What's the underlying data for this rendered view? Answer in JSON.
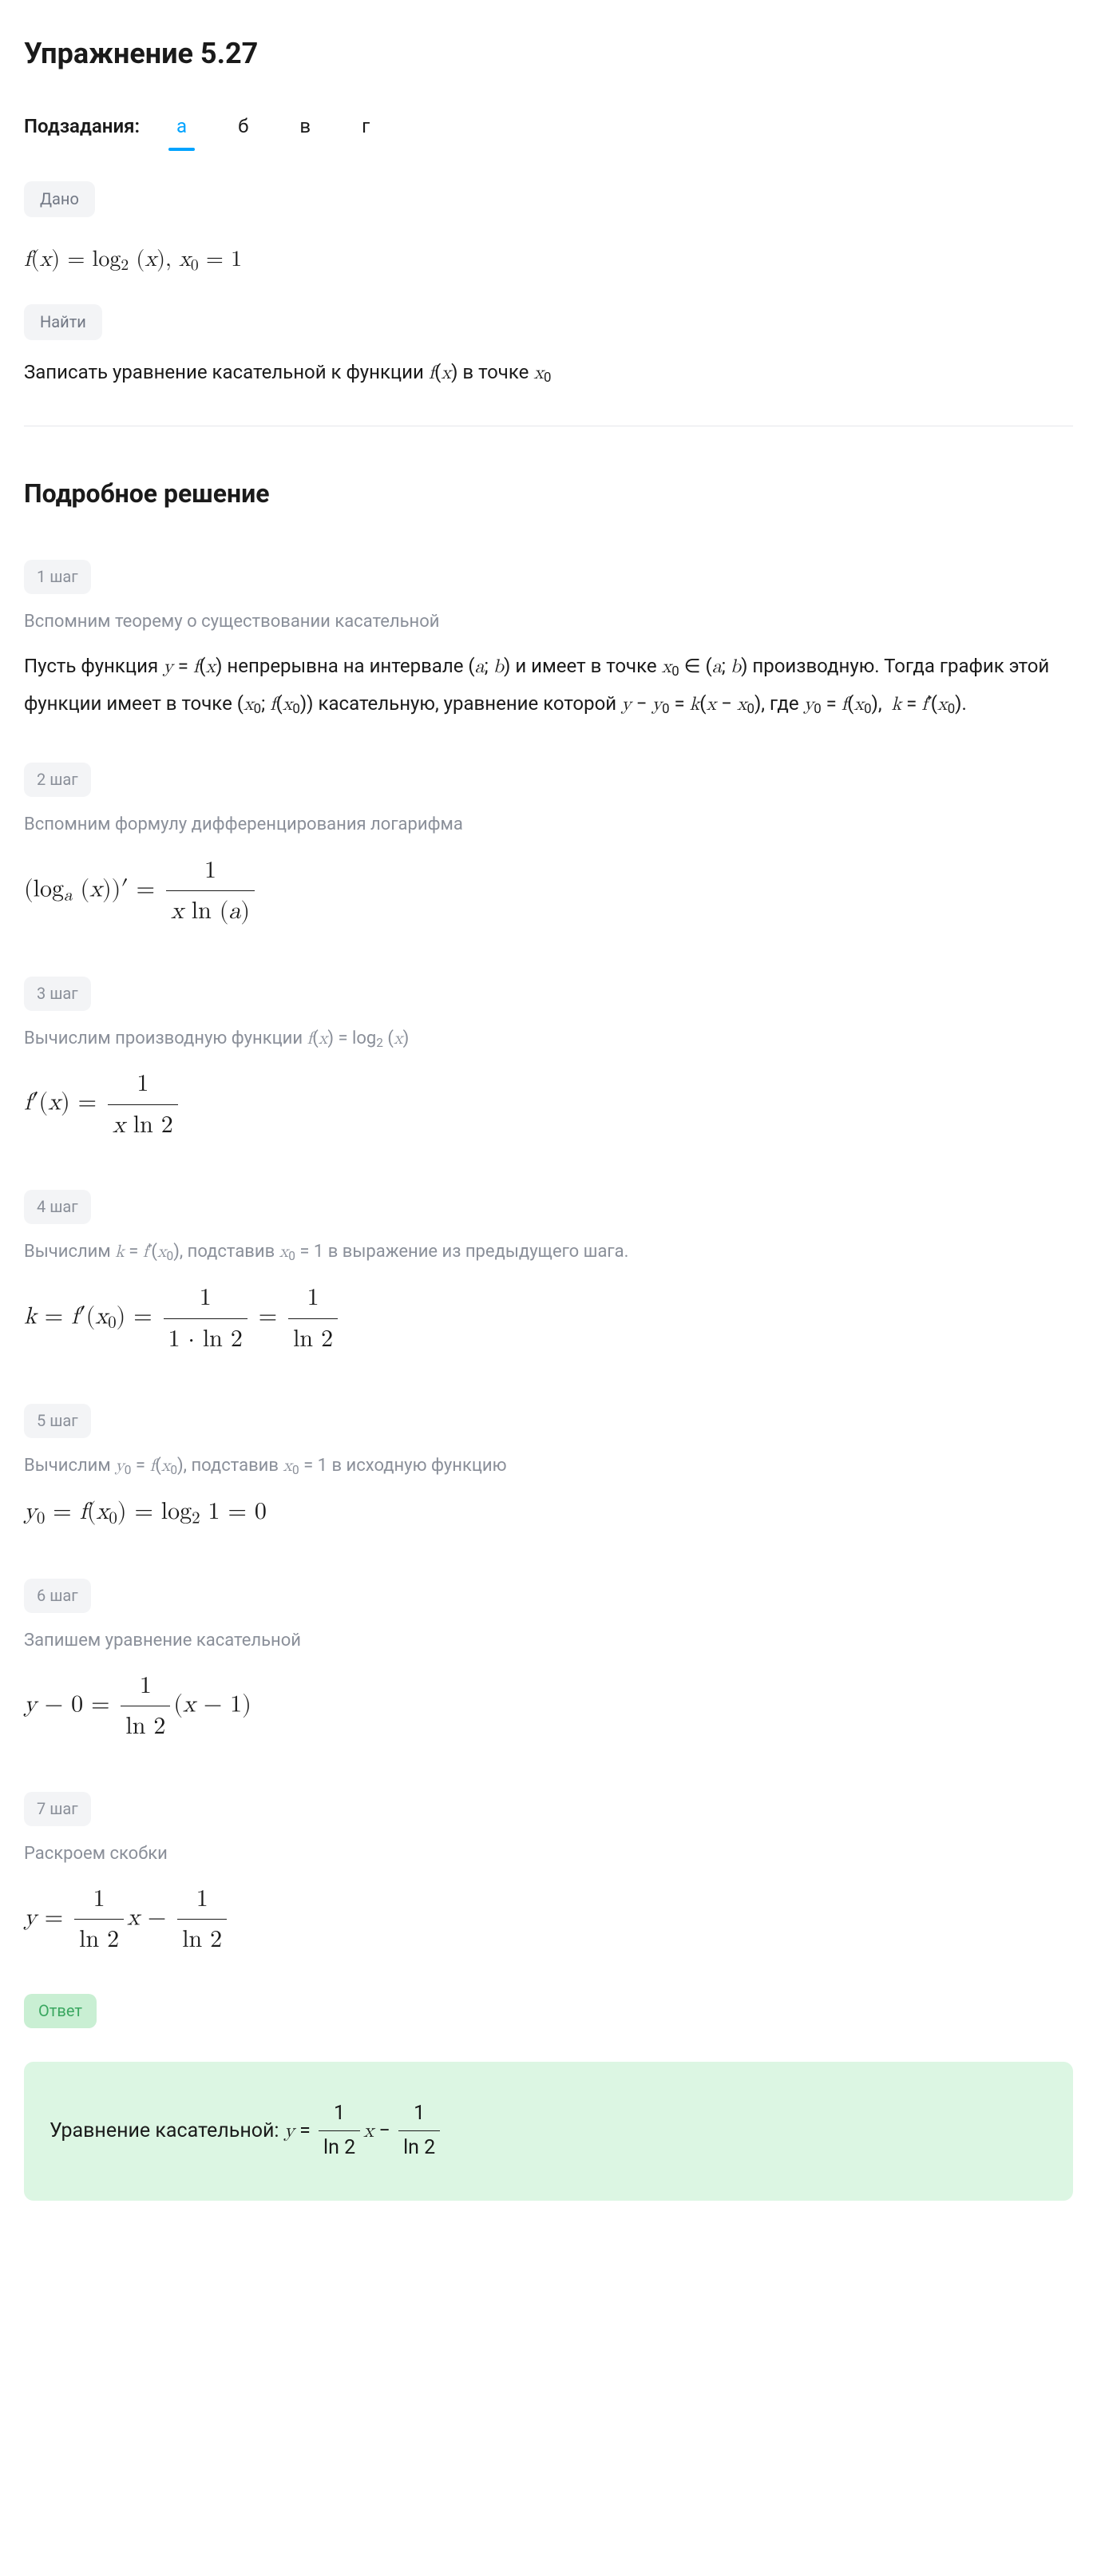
{
  "title": "Упражнение 5.27",
  "subtasks": {
    "label": "Подзадания:",
    "tabs": [
      "а",
      "б",
      "в",
      "г"
    ],
    "active_index": 0,
    "active_color": "#00a3ff"
  },
  "given": {
    "pill": "Дано",
    "formula_html": "<span class='mi'>f</span>(<span class='mi'>x</span>) = log<sub>2</sub> (<span class='mi'>x</span>), <span class='mi'>x</span><sub>0</sub> = 1"
  },
  "find": {
    "pill": "Найти",
    "text_html": "Записать уравнение касательной к функции <span class='mi'>f</span>(<span class='mi'>x</span>) в точке <span class='mi'>x</span><sub>0</sub>"
  },
  "solution_title": "Подробное решение",
  "steps": [
    {
      "badge": "1 шаг",
      "caption": "Вспомним теорему о существовании касательной",
      "body_html": "Пусть функция <span class='mi'>y</span> = <span class='mi'>f</span>(<span class='mi'>x</span>) непрерывна на интервале (<span class='mi'>a</span>; <span class='mi'>b</span>) и имеет в точке <span class='mi'>x</span><sub>0</sub> ∈ (<span class='mi'>a</span>; <span class='mi'>b</span>) производную. Тогда график этой функции имеет в точке (<span class='mi'>x</span><sub>0</sub>; <span class='mi'>f</span>(<span class='mi'>x</span><sub>0</sub>)) касательную, уравнение которой <span class='mi'>y</span> − <span class='mi'>y</span><sub>0</sub> = <span class='mi'>k</span>(<span class='mi'>x</span> − <span class='mi'>x</span><sub>0</sub>), где <span class='mi'>y</span><sub>0</sub> = <span class='mi'>f</span>(<span class='mi'>x</span><sub>0</sub>), &nbsp;<span class='mi'>k</span> = <span class='mi'>f</span>′(<span class='mi'>x</span><sub>0</sub>).",
      "formula_html": ""
    },
    {
      "badge": "2 шаг",
      "caption": "Вспомним формулу дифференцирования логарифма",
      "body_html": "",
      "formula_html": "(log<sub><span class='mi'>a</span></sub> (<span class='mi'>x</span>))′ = <span class='frac'><span class='num'>1</span><span class='den'><span class='mi'>x</span> ln (<span class='mi'>a</span>)</span></span>"
    },
    {
      "badge": "3 шаг",
      "caption_html": "Вычислим производную функции <span class='mi'>f</span>(<span class='mi'>x</span>) = log<sub>2</sub> (<span class='mi'>x</span>)",
      "body_html": "",
      "formula_html": "<span class='mi'>f</span>′(<span class='mi'>x</span>) = <span class='frac'><span class='num'>1</span><span class='den'><span class='mi'>x</span> ln 2</span></span>"
    },
    {
      "badge": "4 шаг",
      "caption_html": "Вычислим <span class='mi'>k</span> = <span class='mi'>f</span>′(<span class='mi'>x</span><sub>0</sub>), подставив <span class='mi'>x</span><sub>0</sub> = 1 в выражение из предыдущего шага.",
      "body_html": "",
      "formula_html": "<span class='mi'>k</span> = <span class='mi'>f</span>′(<span class='mi'>x</span><sub>0</sub>) = <span class='frac'><span class='num'>1</span><span class='den'>1 · ln 2</span></span> = <span class='frac'><span class='num'>1</span><span class='den'>ln 2</span></span>"
    },
    {
      "badge": "5 шаг",
      "caption_html": "Вычислим <span class='mi'>y</span><sub>0</sub> = <span class='mi'>f</span>(<span class='mi'>x</span><sub>0</sub>), подставив <span class='mi'>x</span><sub>0</sub> = 1 в исходную функцию",
      "body_html": "",
      "formula_html": "<span class='mi'>y</span><sub>0</sub> = <span class='mi'>f</span>(<span class='mi'>x</span><sub>0</sub>) = log<sub>2</sub> 1 = 0"
    },
    {
      "badge": "6 шаг",
      "caption": "Запишем уравнение касательной",
      "body_html": "",
      "formula_html": "<span class='mi'>y</span> − 0 = <span class='frac'><span class='num'>1</span><span class='den'>ln 2</span></span>(<span class='mi'>x</span> − 1)"
    },
    {
      "badge": "7 шаг",
      "caption": "Раскроем скобки",
      "body_html": "",
      "formula_html": "<span class='mi'>y</span> = <span class='frac'><span class='num'>1</span><span class='den'>ln 2</span></span><span class='mi'>x</span> − <span class='frac'><span class='num'>1</span><span class='den'>ln 2</span></span>"
    }
  ],
  "answer": {
    "pill": "Ответ",
    "text_html": "Уравнение касательной: <span class='mi'>y</span> = <span class='frac'><span class='num'>1</span><span class='den'>ln 2</span></span><span class='mi'>x</span> − <span class='frac'><span class='num'>1</span><span class='den'>ln 2</span></span>",
    "bg": "#dcf6e3",
    "pill_bg": "#c9efd3",
    "pill_color": "#3aa760"
  },
  "colors": {
    "text": "#1a1a1a",
    "muted": "#8a8f99",
    "pill_bg": "#f3f4f6",
    "divider": "#e5e7eb",
    "bg": "#ffffff"
  },
  "typography": {
    "title_fontsize": 36,
    "body_fontsize": 24,
    "math_fontsize": 28,
    "badge_fontsize": 20
  }
}
